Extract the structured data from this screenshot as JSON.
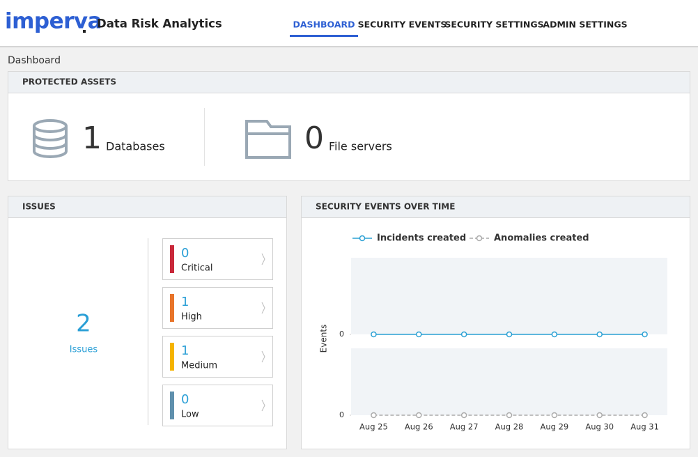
{
  "header": {
    "logo": "imperva",
    "app_title": "Data Risk Analytics",
    "nav": [
      "DASHBOARD",
      "SECURITY EVENTS",
      "SECURITY SETTINGS",
      "ADMIN SETTINGS"
    ]
  },
  "breadcrumb": "Dashboard",
  "protected_assets": {
    "title": "PROTECTED ASSETS",
    "items": [
      {
        "count": 1,
        "label": "Databases"
      },
      {
        "count": 0,
        "label": "File servers"
      }
    ]
  },
  "issues": {
    "title": "ISSUES",
    "total": 2,
    "total_label": "Issues",
    "levels": [
      {
        "count": 0,
        "label": "Critical",
        "color": "#c9283a"
      },
      {
        "count": 1,
        "label": "High",
        "color": "#e8742a"
      },
      {
        "count": 1,
        "label": "Medium",
        "color": "#f5b400"
      },
      {
        "count": 0,
        "label": "Low",
        "color": "#5f90ad"
      }
    ]
  },
  "chart_data": {
    "type": "line",
    "title": "SECURITY EVENTS OVER TIME",
    "y_label": "Events",
    "categories": [
      "Aug 25",
      "Aug 26",
      "Aug 27",
      "Aug 28",
      "Aug 29",
      "Aug 30",
      "Aug 31"
    ],
    "series": [
      {
        "name": "Incidents created",
        "color": "#2aa0d4",
        "dashed": false,
        "values": [
          0,
          0,
          0,
          0,
          0,
          0,
          0
        ]
      },
      {
        "name": "Anomalies created",
        "color": "#aaaaaa",
        "dashed": true,
        "values": [
          0,
          0,
          0,
          0,
          0,
          0,
          0
        ]
      }
    ],
    "ylim": [
      0,
      1
    ],
    "yticks": [
      0
    ]
  }
}
